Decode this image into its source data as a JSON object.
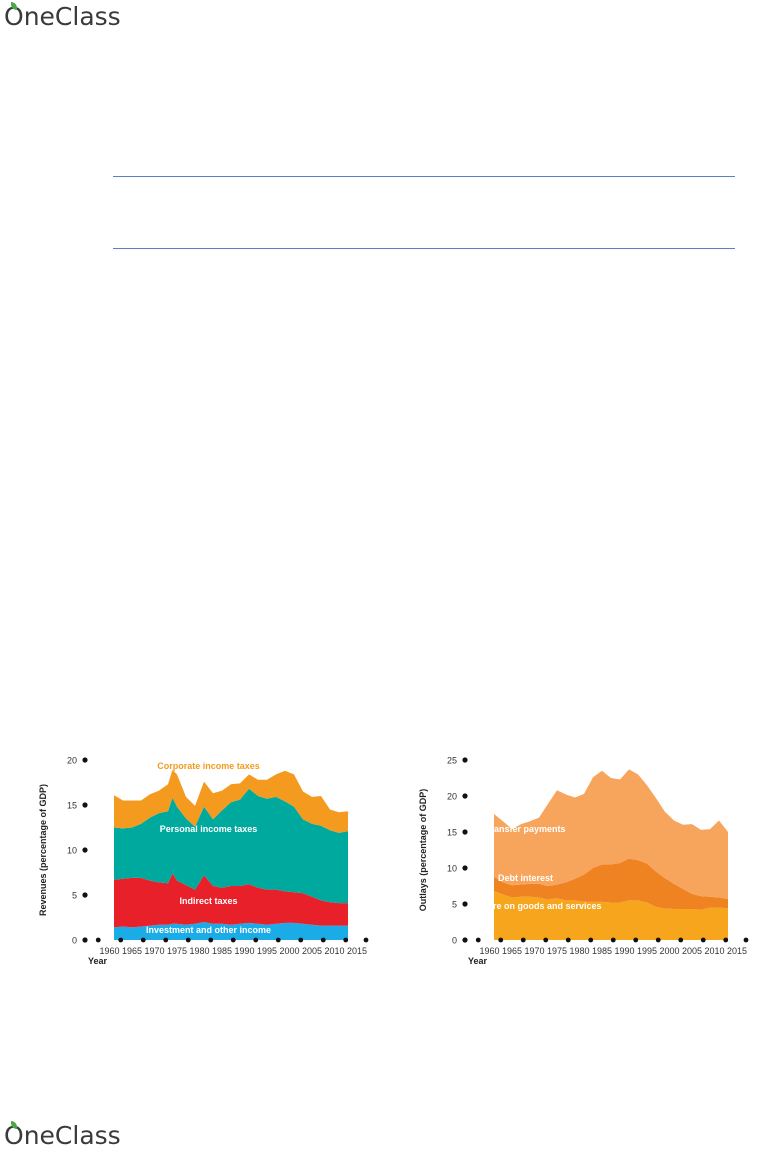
{
  "brand": {
    "name_pre": "",
    "name_o": "O",
    "name_rest": "neClass"
  },
  "colors": {
    "rule": "#5b7ec9",
    "corporate": "#f49b1f",
    "personal": "#00a99d",
    "indirect": "#e8202a",
    "investment": "#1bace8",
    "transfer": "#f7a55c",
    "debt": "#f08321",
    "goods": "#f6a51c"
  },
  "chart_data": [
    {
      "type": "area",
      "stacked": true,
      "xlabel": "Year",
      "ylabel": "Revenues (percentage of GDP)",
      "xlim": [
        1957,
        2017
      ],
      "ylim": [
        0,
        20
      ],
      "x_ticks": [
        1960,
        1965,
        1970,
        1975,
        1980,
        1985,
        1990,
        1995,
        2000,
        2005,
        2010,
        2015
      ],
      "y_ticks": [
        0,
        5,
        10,
        15,
        20
      ],
      "x": [
        1961,
        1963,
        1965,
        1967,
        1969,
        1971,
        1973,
        1974,
        1975,
        1977,
        1979,
        1981,
        1983,
        1985,
        1987,
        1989,
        1991,
        1993,
        1995,
        1997,
        1999,
        2001,
        2003,
        2005,
        2007,
        2009,
        2011,
        2013
      ],
      "series": [
        {
          "name": "Investment and other income",
          "color": "#1bace8",
          "values": [
            1.4,
            1.5,
            1.4,
            1.5,
            1.6,
            1.7,
            1.7,
            1.8,
            1.8,
            1.7,
            1.8,
            2.0,
            1.8,
            1.8,
            1.7,
            1.8,
            1.9,
            1.8,
            1.7,
            1.8,
            1.9,
            1.9,
            1.8,
            1.7,
            1.6,
            1.6,
            1.6,
            1.6
          ]
        },
        {
          "name": "Indirect taxes",
          "color": "#e8202a",
          "values": [
            5.3,
            5.3,
            5.5,
            5.4,
            5.0,
            4.7,
            4.6,
            5.6,
            4.8,
            4.4,
            3.8,
            5.2,
            4.2,
            4.0,
            4.3,
            4.2,
            4.3,
            4.0,
            3.9,
            3.8,
            3.5,
            3.4,
            3.4,
            3.1,
            2.8,
            2.6,
            2.5,
            2.5
          ]
        },
        {
          "name": "Personal income taxes",
          "color": "#00a99d",
          "values": [
            5.8,
            5.6,
            5.6,
            6.0,
            7.0,
            7.7,
            8.0,
            8.4,
            8.2,
            7.4,
            7.0,
            7.6,
            7.4,
            8.6,
            9.3,
            9.6,
            10.6,
            10.2,
            10.1,
            10.3,
            10.0,
            9.5,
            8.2,
            8.1,
            8.3,
            8.0,
            7.8,
            8.0
          ]
        },
        {
          "name": "Corporate income taxes",
          "color": "#f49b1f",
          "values": [
            3.6,
            3.1,
            3.0,
            2.6,
            2.6,
            2.5,
            3.0,
            3.1,
            3.6,
            2.4,
            2.3,
            2.8,
            2.9,
            2.2,
            2.0,
            1.8,
            1.6,
            1.8,
            2.1,
            2.5,
            3.4,
            3.6,
            3.1,
            3.0,
            3.3,
            2.3,
            2.3,
            2.2
          ]
        }
      ]
    },
    {
      "type": "area",
      "stacked": true,
      "xlabel": "Year",
      "ylabel": "Outlays (percentage of GDP)",
      "xlim": [
        1957,
        2017
      ],
      "ylim": [
        0,
        25
      ],
      "x_ticks": [
        1960,
        1965,
        1970,
        1975,
        1980,
        1985,
        1990,
        1995,
        2000,
        2005,
        2010,
        2015
      ],
      "y_ticks": [
        0,
        5,
        10,
        15,
        20,
        25
      ],
      "x": [
        1961,
        1963,
        1965,
        1967,
        1969,
        1971,
        1973,
        1975,
        1977,
        1979,
        1981,
        1983,
        1985,
        1987,
        1989,
        1991,
        1993,
        1995,
        1997,
        1999,
        2001,
        2003,
        2005,
        2007,
        2009,
        2011,
        2013
      ],
      "series": [
        {
          "name": "Expenditure on goods and services",
          "color": "#f6a51c",
          "values": [
            6.8,
            6.3,
            5.9,
            6.0,
            6.0,
            5.9,
            5.6,
            5.8,
            5.5,
            5.5,
            5.3,
            5.3,
            5.3,
            5.2,
            5.2,
            5.5,
            5.5,
            5.2,
            4.6,
            4.4,
            4.3,
            4.3,
            4.3,
            4.2,
            4.5,
            4.5,
            4.4
          ]
        },
        {
          "name": "Debt interest",
          "color": "#f08321",
          "values": [
            2.0,
            1.7,
            1.7,
            1.7,
            1.8,
            1.9,
            1.9,
            1.9,
            2.5,
            3.0,
            3.8,
            4.7,
            5.2,
            5.3,
            5.5,
            5.8,
            5.6,
            5.4,
            4.9,
            4.2,
            3.5,
            2.8,
            2.1,
            1.9,
            1.5,
            1.4,
            1.3
          ]
        },
        {
          "name": "Transfer payments",
          "color": "#f7a55c",
          "values": [
            8.7,
            8.5,
            7.8,
            8.4,
            8.7,
            9.2,
            11.4,
            13.1,
            12.2,
            11.3,
            11.2,
            12.6,
            13.0,
            12.0,
            11.6,
            12.4,
            11.9,
            10.9,
            10.2,
            9.2,
            8.8,
            8.9,
            9.7,
            9.2,
            9.4,
            10.7,
            9.3
          ]
        }
      ]
    }
  ]
}
